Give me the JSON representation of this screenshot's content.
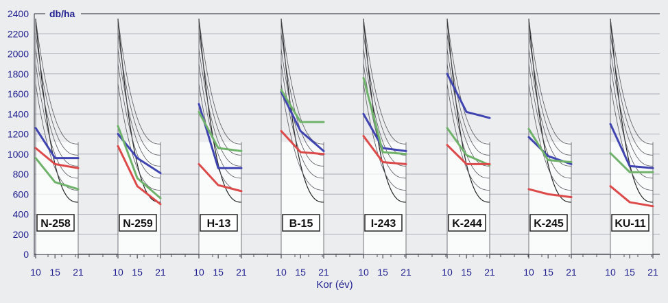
{
  "colors": {
    "background": "#ecedef",
    "panel": "#ffffff",
    "grid": "#a9abb8",
    "axis": "#4a4a55",
    "text": "#1f1f8f",
    "guide": "#55555d",
    "blue": "#3f44b0",
    "green": "#6fb36b",
    "red": "#dd4a4a"
  },
  "chart_data": {
    "type": "line",
    "ylabel": "db/ha",
    "xlabel": "Kor (év)",
    "ylim": [
      0,
      2400
    ],
    "yticks": [
      0,
      200,
      400,
      600,
      800,
      1000,
      1200,
      1400,
      1600,
      1800,
      2000,
      2200,
      2400
    ],
    "x": [
      10,
      15,
      21
    ],
    "x_tick_labels": [
      "10",
      "15",
      "21"
    ],
    "grid": true,
    "guide_curves_top": [
      2350,
      1700,
      1900,
      2050,
      2200,
      2350
    ],
    "guide_curves_end": [
      520,
      640,
      760,
      880,
      990,
      1100
    ],
    "panels": [
      {
        "label": "N-258",
        "series": [
          {
            "color": "blue",
            "values": [
              1260,
              960,
              960
            ]
          },
          {
            "color": "green",
            "values": [
              960,
              720,
              650
            ]
          },
          {
            "color": "red",
            "values": [
              1060,
              900,
              860
            ]
          }
        ]
      },
      {
        "label": "N-259",
        "series": [
          {
            "color": "blue",
            "values": [
              1200,
              960,
              810
            ]
          },
          {
            "color": "green",
            "values": [
              1280,
              760,
              560
            ]
          },
          {
            "color": "red",
            "values": [
              1080,
              680,
              500
            ]
          }
        ]
      },
      {
        "label": "H-13",
        "series": [
          {
            "color": "blue",
            "values": [
              1500,
              860,
              860
            ]
          },
          {
            "color": "green",
            "values": [
              1420,
              1060,
              1030
            ]
          },
          {
            "color": "red",
            "values": [
              900,
              690,
              630
            ]
          }
        ]
      },
      {
        "label": "B-15",
        "series": [
          {
            "color": "blue",
            "values": [
              1620,
              1230,
              1030
            ]
          },
          {
            "color": "green",
            "values": [
              1640,
              1320,
              1320
            ]
          },
          {
            "color": "red",
            "values": [
              1230,
              1020,
              1000
            ]
          }
        ]
      },
      {
        "label": "I-243",
        "series": [
          {
            "color": "blue",
            "values": [
              1400,
              1060,
              1030
            ]
          },
          {
            "color": "green",
            "values": [
              1760,
              1020,
              1000
            ]
          },
          {
            "color": "red",
            "values": [
              1180,
              920,
              900
            ]
          }
        ]
      },
      {
        "label": "K-244",
        "series": [
          {
            "color": "blue",
            "values": [
              1800,
              1420,
              1360
            ]
          },
          {
            "color": "green",
            "values": [
              1260,
              990,
              890
            ]
          },
          {
            "color": "red",
            "values": [
              1090,
              900,
              900
            ]
          }
        ]
      },
      {
        "label": "K-245",
        "series": [
          {
            "color": "blue",
            "values": [
              1170,
              980,
              900
            ]
          },
          {
            "color": "green",
            "values": [
              1250,
              940,
              920
            ]
          },
          {
            "color": "red",
            "values": [
              650,
              600,
              570
            ]
          }
        ]
      },
      {
        "label": "KU-11",
        "series": [
          {
            "color": "blue",
            "values": [
              1300,
              880,
              860
            ]
          },
          {
            "color": "green",
            "values": [
              1010,
              820,
              820
            ]
          },
          {
            "color": "red",
            "values": [
              680,
              520,
              480
            ]
          }
        ]
      }
    ]
  }
}
